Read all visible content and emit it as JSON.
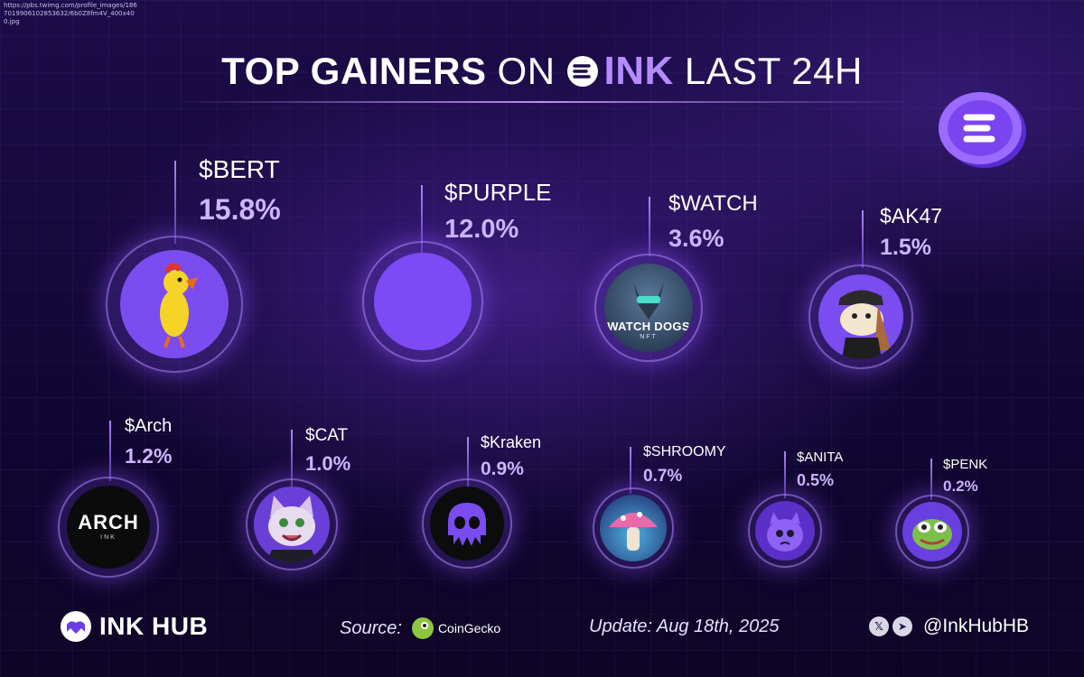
{
  "url_text": "https://pbs.twimg.com/profile_images/1867019906102853632/6b0Z8fm4V_400x400.jpg",
  "title": {
    "part1": "TOP GAINERS",
    "part2": "ON",
    "brand": "INK",
    "part3": "LAST 24H"
  },
  "tokens": [
    {
      "symbol": "$BERT",
      "change": "15.8%",
      "change_value": 15.8,
      "icon": "rubber-chicken-icon"
    },
    {
      "symbol": "$PURPLE",
      "change": "12.0%",
      "change_value": 12.0,
      "icon": "purple-circle-icon"
    },
    {
      "symbol": "$WATCH",
      "change": "3.6%",
      "change_value": 3.6,
      "icon": "watch-dogs-icon",
      "logo_text": "WATCH DOGS",
      "logo_subtext": "NFT"
    },
    {
      "symbol": "$AK47",
      "change": "1.5%",
      "change_value": 1.5,
      "icon": "cartoon-face-icon"
    },
    {
      "symbol": "$Arch",
      "change": "1.2%",
      "change_value": 1.2,
      "icon": "arch-logo-icon",
      "logo_text": "ARCH",
      "logo_subtext": "INK"
    },
    {
      "symbol": "$CAT",
      "change": "1.0%",
      "change_value": 1.0,
      "icon": "cat-icon"
    },
    {
      "symbol": "$Kraken",
      "change": "0.9%",
      "change_value": 0.9,
      "icon": "skull-icon"
    },
    {
      "symbol": "$SHROOMY",
      "change": "0.7%",
      "change_value": 0.7,
      "icon": "mushroom-icon"
    },
    {
      "symbol": "$ANITA",
      "change": "0.5%",
      "change_value": 0.5,
      "icon": "purple-monster-icon"
    },
    {
      "symbol": "$PENK",
      "change": "0.2%",
      "change_value": 0.2,
      "icon": "frog-icon"
    }
  ],
  "footer": {
    "brand": "INK HUB",
    "source_label": "Source:",
    "source_name": "CoinGecko",
    "update": "Update: Aug 18th, 2025",
    "social_icons": [
      "x-icon",
      "telegram-icon"
    ],
    "handle": "@InkHubHB"
  },
  "colors": {
    "accent": "#8b5cf6",
    "percent": "#cdb6ff",
    "background": "#140838"
  }
}
